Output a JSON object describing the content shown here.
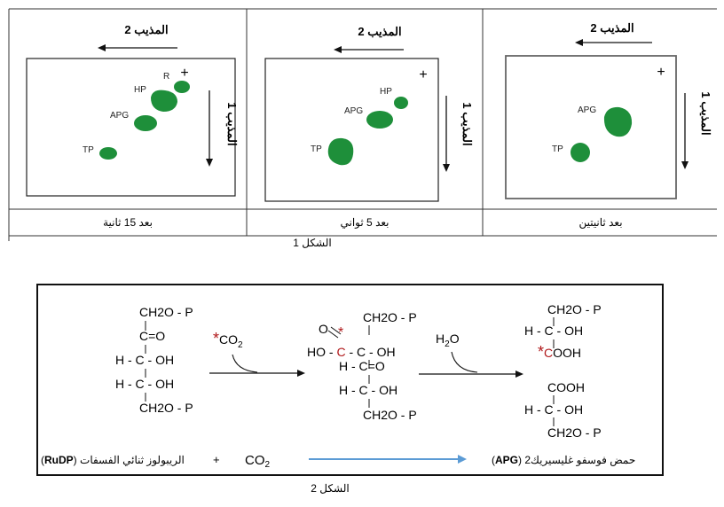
{
  "figure1": {
    "caption": "الشكل 1",
    "panels": [
      {
        "time_label": "بعد 15 ثانية",
        "solvent2": "المذيب 2",
        "solvent1": "المذيب 1",
        "origin": "+",
        "spots": [
          {
            "label": "R",
            "color": "#1e8f3a"
          },
          {
            "label": "HP",
            "color": "#1e8f3a"
          },
          {
            "label": "APG",
            "color": "#1e8f3a"
          },
          {
            "label": "TP",
            "color": "#1e8f3a"
          }
        ]
      },
      {
        "time_label": "بعد 5 ثواني",
        "solvent2": "المذيب 2",
        "solvent1": "المذيب 1",
        "origin": "+",
        "spots": [
          {
            "label": "HP",
            "color": "#1e8f3a"
          },
          {
            "label": "APG",
            "color": "#1e8f3a"
          },
          {
            "label": "TP",
            "color": "#1e8f3a"
          }
        ]
      },
      {
        "time_label": "بعد ثانيتين",
        "solvent2": "المذيب 2",
        "solvent1": "المذيب 1",
        "origin": "+",
        "spots": [
          {
            "label": "APG",
            "color": "#1e8f3a"
          },
          {
            "label": "TP",
            "color": "#1e8f3a"
          }
        ]
      }
    ]
  },
  "figure2": {
    "caption": "الشكل 2",
    "rudp": {
      "l1": "CH2O - P",
      "l2": "C=O",
      "l3": "H - C - OH",
      "l4": "H - C - OH",
      "l5": "CH2O - P"
    },
    "co2_reactant": "*CO2",
    "intermediate": {
      "l1": "CH2O - P",
      "carbonyl_o": "O",
      "l2": "HO - C - C - OH",
      "l3": "H - C=O",
      "l4": "H - C - OH",
      "l5": "CH2O - P",
      "mark": "*"
    },
    "h2o": "H2O",
    "apg1": {
      "l1": "CH2O - P",
      "l2": "H - C - OH",
      "l3": "*COOH"
    },
    "apg2": {
      "l1": "COOH",
      "l2": "H - C - OH",
      "l3": "CH2O - P"
    },
    "equation": {
      "left": "الريبولوز ثنائي الفسفات (RuDP)",
      "plus": "+",
      "co2": "CO2",
      "right": "2حمض فوسفو غليسيريك (APG)"
    },
    "marker_color": "#b0181a",
    "arrow_color": "#5b9bd5"
  }
}
